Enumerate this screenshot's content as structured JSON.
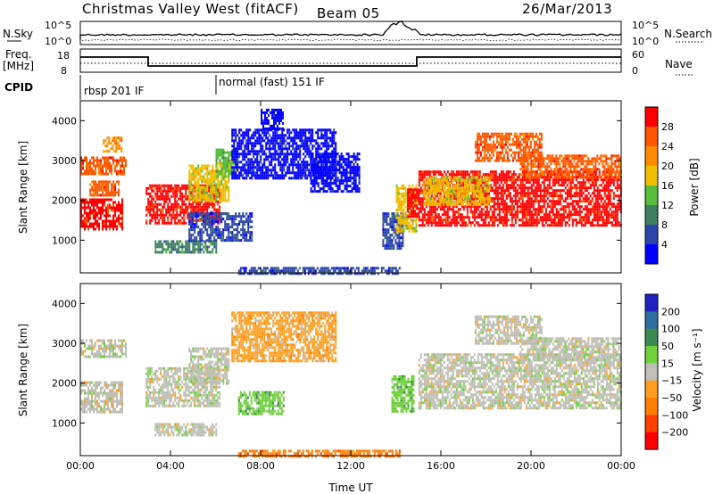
{
  "header": {
    "station": "Christmas Valley West (fitACF)",
    "beam": "Beam 05",
    "date": "26/Mar/2013"
  },
  "top_panel_labels": {
    "nsky": "N.Sky",
    "nsky_top": "10^5",
    "nsky_bottom": "10^0",
    "nsearch": "N.Search",
    "nsearch_top": "10^5",
    "nsearch_bottom": "10^0",
    "freq_1": "Freq.",
    "freq_2": "[MHz]",
    "freq_top": "18",
    "freq_bottom": "8",
    "nave": "Nave",
    "nave_top": "60",
    "nave_bottom": "0",
    "cpid": "CPID",
    "cpid_1": "rbsp 201 IF",
    "cpid_2": "normal (fast) 151 IF"
  },
  "colors": {
    "power": [
      "#0000ff",
      "#2c45a8",
      "#3f7f5f",
      "#57bd3d",
      "#f0c000",
      "#ff8c00",
      "#ff5500",
      "#ff0000"
    ],
    "velocity": [
      "#2020c0",
      "#2e6ea0",
      "#3c8a50",
      "#6fd13c",
      "#bfbfb7",
      "#ffa020",
      "#ff7f00",
      "#ff4000",
      "#ff0000"
    ],
    "ground": "#bfbfb7"
  },
  "chart_data": [
    {
      "type": "heatmap",
      "name": "power",
      "x_ticks": [
        "00:00",
        "04:00",
        "08:00",
        "12:00",
        "16:00",
        "20:00",
        "00:00"
      ],
      "xlim_hours": [
        0,
        24
      ],
      "ylabel": "Slant Range [km]",
      "y_ticks": [
        1000,
        2000,
        3000,
        4000
      ],
      "ylim_km": [
        180,
        4500
      ],
      "colorbar": {
        "label": "Power [dB]",
        "ticks": [
          "4",
          "8",
          "12",
          "16",
          "20",
          "24",
          "28"
        ]
      },
      "regions": [
        {
          "t0": 0.0,
          "t1": 1.9,
          "r0": 1300,
          "r1": 2050,
          "level": 7
        },
        {
          "t0": 0.0,
          "t1": 2.0,
          "r0": 2650,
          "r1": 3100,
          "level": 6
        },
        {
          "t0": 1.0,
          "t1": 1.8,
          "r0": 3250,
          "r1": 3600,
          "level": 5
        },
        {
          "t0": 0.4,
          "t1": 1.7,
          "r0": 2100,
          "r1": 2500,
          "level": 6
        },
        {
          "t0": 2.9,
          "t1": 6.2,
          "r0": 1400,
          "r1": 2400,
          "level": 7
        },
        {
          "t0": 4.8,
          "t1": 6.6,
          "r0": 2000,
          "r1": 2900,
          "level": 4
        },
        {
          "t0": 6.0,
          "t1": 6.9,
          "r0": 2600,
          "r1": 3300,
          "level": 3
        },
        {
          "t0": 3.3,
          "t1": 6.0,
          "r0": 700,
          "r1": 1000,
          "level": 2
        },
        {
          "t0": 4.8,
          "t1": 7.6,
          "r0": 1000,
          "r1": 1700,
          "level": 1
        },
        {
          "t0": 6.7,
          "t1": 11.3,
          "r0": 2550,
          "r1": 3800,
          "level": 0
        },
        {
          "t0": 10.2,
          "t1": 12.4,
          "r0": 2200,
          "r1": 3200,
          "level": 0
        },
        {
          "t0": 8.0,
          "t1": 9.0,
          "r0": 3800,
          "r1": 4300,
          "level": 0
        },
        {
          "t0": 13.4,
          "t1": 14.3,
          "r0": 800,
          "r1": 1700,
          "level": 1
        },
        {
          "t0": 14.0,
          "t1": 14.9,
          "r0": 1200,
          "r1": 2400,
          "level": 4
        },
        {
          "t0": 14.5,
          "t1": 15.0,
          "r0": 1600,
          "r1": 2300,
          "level": 7
        },
        {
          "t0": 15.0,
          "t1": 24.0,
          "r0": 1350,
          "r1": 2750,
          "level": 7
        },
        {
          "t0": 15.2,
          "t1": 18.2,
          "r0": 1900,
          "r1": 2600,
          "level": 4
        },
        {
          "t0": 19.5,
          "t1": 24.0,
          "r0": 2600,
          "r1": 3150,
          "level": 6
        },
        {
          "t0": 17.5,
          "t1": 20.5,
          "r0": 3000,
          "r1": 3700,
          "level": 6
        },
        {
          "t0": 7.0,
          "t1": 14.2,
          "r0": 180,
          "r1": 330,
          "level": 1
        }
      ]
    },
    {
      "type": "heatmap",
      "name": "velocity",
      "x_ticks": [
        "00:00",
        "04:00",
        "08:00",
        "12:00",
        "16:00",
        "20:00",
        "00:00"
      ],
      "xlim_hours": [
        0,
        24
      ],
      "xlabel": "Time UT",
      "ylabel": "Slant Range [km]",
      "y_ticks": [
        1000,
        2000,
        3000,
        4000
      ],
      "ylim_km": [
        180,
        4500
      ],
      "colorbar": {
        "label": "Velocity [m s⁻¹]",
        "ticks": [
          "200",
          "100",
          "50",
          "15",
          "−15",
          "−50",
          "−100",
          "−200"
        ]
      },
      "regions": [
        {
          "t0": 0.0,
          "t1": 1.9,
          "r0": 1300,
          "r1": 2050,
          "level": 4
        },
        {
          "t0": 0.0,
          "t1": 2.0,
          "r0": 2650,
          "r1": 3100,
          "level": 4
        },
        {
          "t0": 2.9,
          "t1": 6.2,
          "r0": 1400,
          "r1": 2400,
          "level": 4
        },
        {
          "t0": 4.8,
          "t1": 6.6,
          "r0": 2000,
          "r1": 2900,
          "level": 4
        },
        {
          "t0": 6.7,
          "t1": 11.3,
          "r0": 2550,
          "r1": 3800,
          "level": 5
        },
        {
          "t0": 7.0,
          "t1": 9.0,
          "r0": 1200,
          "r1": 1800,
          "level": 3
        },
        {
          "t0": 3.3,
          "t1": 6.0,
          "r0": 700,
          "r1": 1000,
          "level": 4
        },
        {
          "t0": 13.8,
          "t1": 14.8,
          "r0": 1300,
          "r1": 2200,
          "level": 3
        },
        {
          "t0": 15.0,
          "t1": 24.0,
          "r0": 1350,
          "r1": 2750,
          "level": 4
        },
        {
          "t0": 19.5,
          "t1": 24.0,
          "r0": 2600,
          "r1": 3150,
          "level": 4
        },
        {
          "t0": 17.5,
          "t1": 20.5,
          "r0": 3000,
          "r1": 3700,
          "level": 4
        },
        {
          "t0": 7.0,
          "t1": 14.2,
          "r0": 180,
          "r1": 330,
          "level": 6
        }
      ]
    }
  ]
}
